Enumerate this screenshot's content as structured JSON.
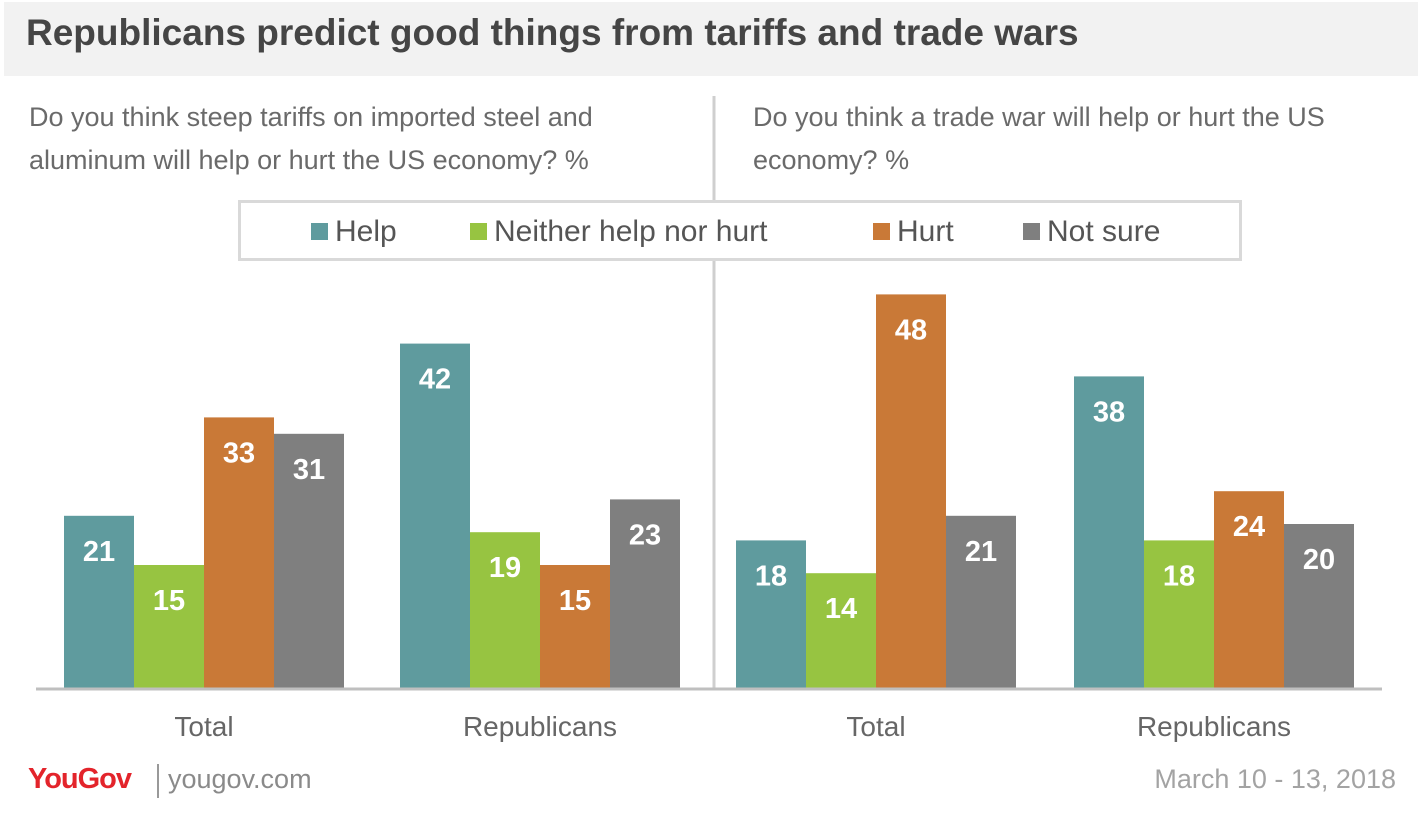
{
  "title": "Republicans predict good things from tariffs and trade wars",
  "footer": {
    "logo": "YouGov",
    "website": "yougov.com",
    "date": "March 10 - 13, 2018"
  },
  "colors": {
    "help": "#5f9b9e",
    "neither": "#97c441",
    "hurt": "#c97937",
    "not_sure": "#7f7f7f"
  },
  "legend": {
    "placement": "top-center",
    "items": [
      "Help",
      "Neither help nor hurt",
      "Hurt",
      "Not sure"
    ]
  },
  "chart_data": [
    {
      "type": "bar",
      "title": "Do you think steep tariffs on imported steel and aluminum will help or hurt the US economy? %",
      "categories": [
        "Total",
        "Republicans"
      ],
      "series": [
        {
          "name": "Help",
          "values": [
            21,
            42
          ]
        },
        {
          "name": "Neither help nor hurt",
          "values": [
            15,
            19
          ]
        },
        {
          "name": "Hurt",
          "values": [
            33,
            15
          ]
        },
        {
          "name": "Not sure",
          "values": [
            31,
            23
          ]
        }
      ],
      "ylim": [
        0,
        50
      ]
    },
    {
      "type": "bar",
      "title": "Do you think a trade war will help or hurt the US economy? %",
      "categories": [
        "Total",
        "Republicans"
      ],
      "series": [
        {
          "name": "Help",
          "values": [
            18,
            38
          ]
        },
        {
          "name": "Neither help nor hurt",
          "values": [
            14,
            18
          ]
        },
        {
          "name": "Hurt",
          "values": [
            48,
            24
          ]
        },
        {
          "name": "Not sure",
          "values": [
            21,
            20
          ]
        }
      ],
      "ylim": [
        0,
        50
      ]
    }
  ]
}
